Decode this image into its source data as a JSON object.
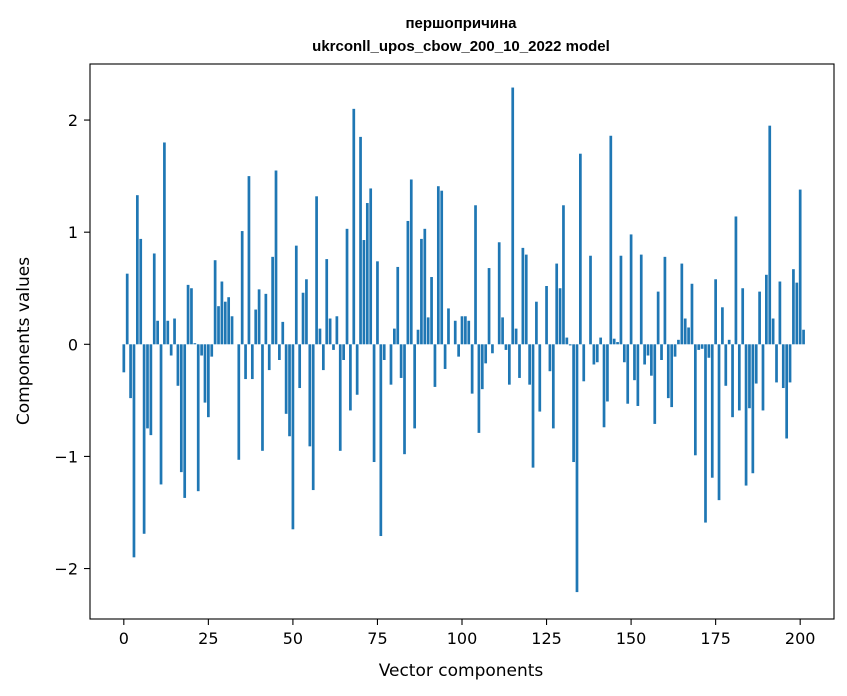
{
  "chart_data": {
    "type": "bar",
    "title": "першопричина",
    "subtitle": "ukrconll_upos_cbow_200_10_2022 model",
    "xlabel": "Vector components",
    "ylabel": "Components values",
    "xlim": [
      -10,
      210
    ],
    "ylim": [
      -2.45,
      2.5
    ],
    "xticks": [
      0,
      25,
      50,
      75,
      100,
      125,
      150,
      175,
      200
    ],
    "yticks": [
      -2,
      -1,
      0,
      1,
      2
    ],
    "ytick_labels": [
      "−2",
      "−1",
      "0",
      "1",
      "2"
    ],
    "bar_color": "#1f77b4",
    "series": [
      {
        "name": "першопричина",
        "values": [
          -0.25,
          0.63,
          -0.48,
          -1.9,
          1.33,
          0.94,
          -1.69,
          -0.75,
          -0.81,
          0.81,
          0.21,
          -1.25,
          1.8,
          0.21,
          -0.1,
          0.23,
          -0.37,
          -1.14,
          -1.37,
          0.53,
          0.5,
          0.01,
          -1.31,
          -0.1,
          -0.52,
          -0.65,
          -0.11,
          0.75,
          0.34,
          0.56,
          0.38,
          0.42,
          0.25,
          0.0,
          -1.03,
          1.01,
          -0.31,
          1.5,
          -0.31,
          0.31,
          0.49,
          -0.95,
          0.45,
          -0.23,
          0.78,
          1.55,
          -0.14,
          0.2,
          -0.62,
          -0.82,
          -1.65,
          0.88,
          -0.39,
          0.46,
          0.58,
          -0.91,
          -1.3,
          1.32,
          0.14,
          -0.23,
          0.76,
          0.23,
          -0.05,
          0.25,
          -0.95,
          -0.14,
          1.03,
          -0.59,
          2.1,
          -0.45,
          1.85,
          0.93,
          1.26,
          1.39,
          -1.05,
          0.74,
          -1.71,
          -0.14,
          0.0,
          -0.36,
          0.14,
          0.69,
          -0.3,
          -0.98,
          1.1,
          1.47,
          -0.75,
          0.13,
          0.94,
          1.03,
          0.24,
          0.6,
          -0.38,
          1.41,
          1.37,
          -0.22,
          0.32,
          0.0,
          0.21,
          -0.11,
          0.25,
          0.25,
          0.21,
          -0.44,
          1.24,
          -0.79,
          -0.4,
          -0.17,
          0.68,
          -0.08,
          0.0,
          0.91,
          0.24,
          -0.05,
          -0.36,
          2.29,
          0.14,
          -0.3,
          0.86,
          0.8,
          -0.36,
          -1.1,
          0.38,
          -0.6,
          0.0,
          0.52,
          -0.24,
          -0.75,
          0.72,
          0.5,
          1.24,
          0.06,
          -0.01,
          -1.05,
          -2.21,
          1.7,
          -0.33,
          0.0,
          0.79,
          -0.18,
          -0.16,
          0.06,
          -0.74,
          -0.51,
          1.86,
          0.05,
          0.02,
          0.79,
          -0.16,
          -0.53,
          0.98,
          -0.32,
          -0.55,
          0.8,
          -0.18,
          -0.1,
          -0.28,
          -0.71,
          0.47,
          -0.14,
          0.78,
          -0.48,
          -0.56,
          -0.11,
          0.04,
          0.72,
          0.23,
          0.15,
          0.54,
          -0.99,
          -0.05,
          -0.04,
          -1.59,
          -0.12,
          -1.19,
          0.58,
          -1.39,
          0.33,
          -0.37,
          0.04,
          -0.65,
          1.14,
          -0.59,
          0.5,
          -1.26,
          -0.57,
          -1.15,
          -0.35,
          0.47,
          -0.59,
          0.62,
          1.95,
          0.23,
          -0.34,
          0.56,
          -0.39,
          -0.84,
          -0.34,
          0.67,
          0.55,
          1.38,
          0.13
        ]
      }
    ]
  }
}
